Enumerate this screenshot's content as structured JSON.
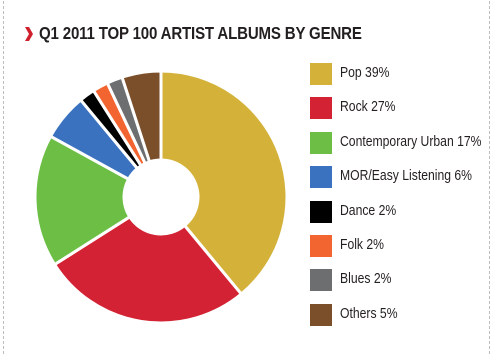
{
  "chart_data": {
    "type": "pie",
    "variant": "donut",
    "title": "Q1 2011 TOP 100 ARTIST ALBUMS BY GENRE",
    "categories": [
      "Pop",
      "Rock",
      "Contemporary Urban",
      "MOR/Easy Listening",
      "Dance",
      "Folk",
      "Blues",
      "Others"
    ],
    "values": [
      39,
      27,
      17,
      6,
      2,
      2,
      2,
      5
    ],
    "legend_labels": [
      "Pop 39%",
      "Rock 27%",
      "Contemporary Urban 17%",
      "MOR/Easy Listening 6%",
      "Dance 2%",
      "Folk 2%",
      "Blues 2%",
      "Others 5%"
    ],
    "colors": [
      "#d4b23a",
      "#d32233",
      "#6cbe45",
      "#3a72c0",
      "#000000",
      "#f26430",
      "#6d6e70",
      "#7b4f2a"
    ],
    "legend_position": "right"
  },
  "accent_color": "#d0202e",
  "marker_icon": "chevron-right-icon"
}
